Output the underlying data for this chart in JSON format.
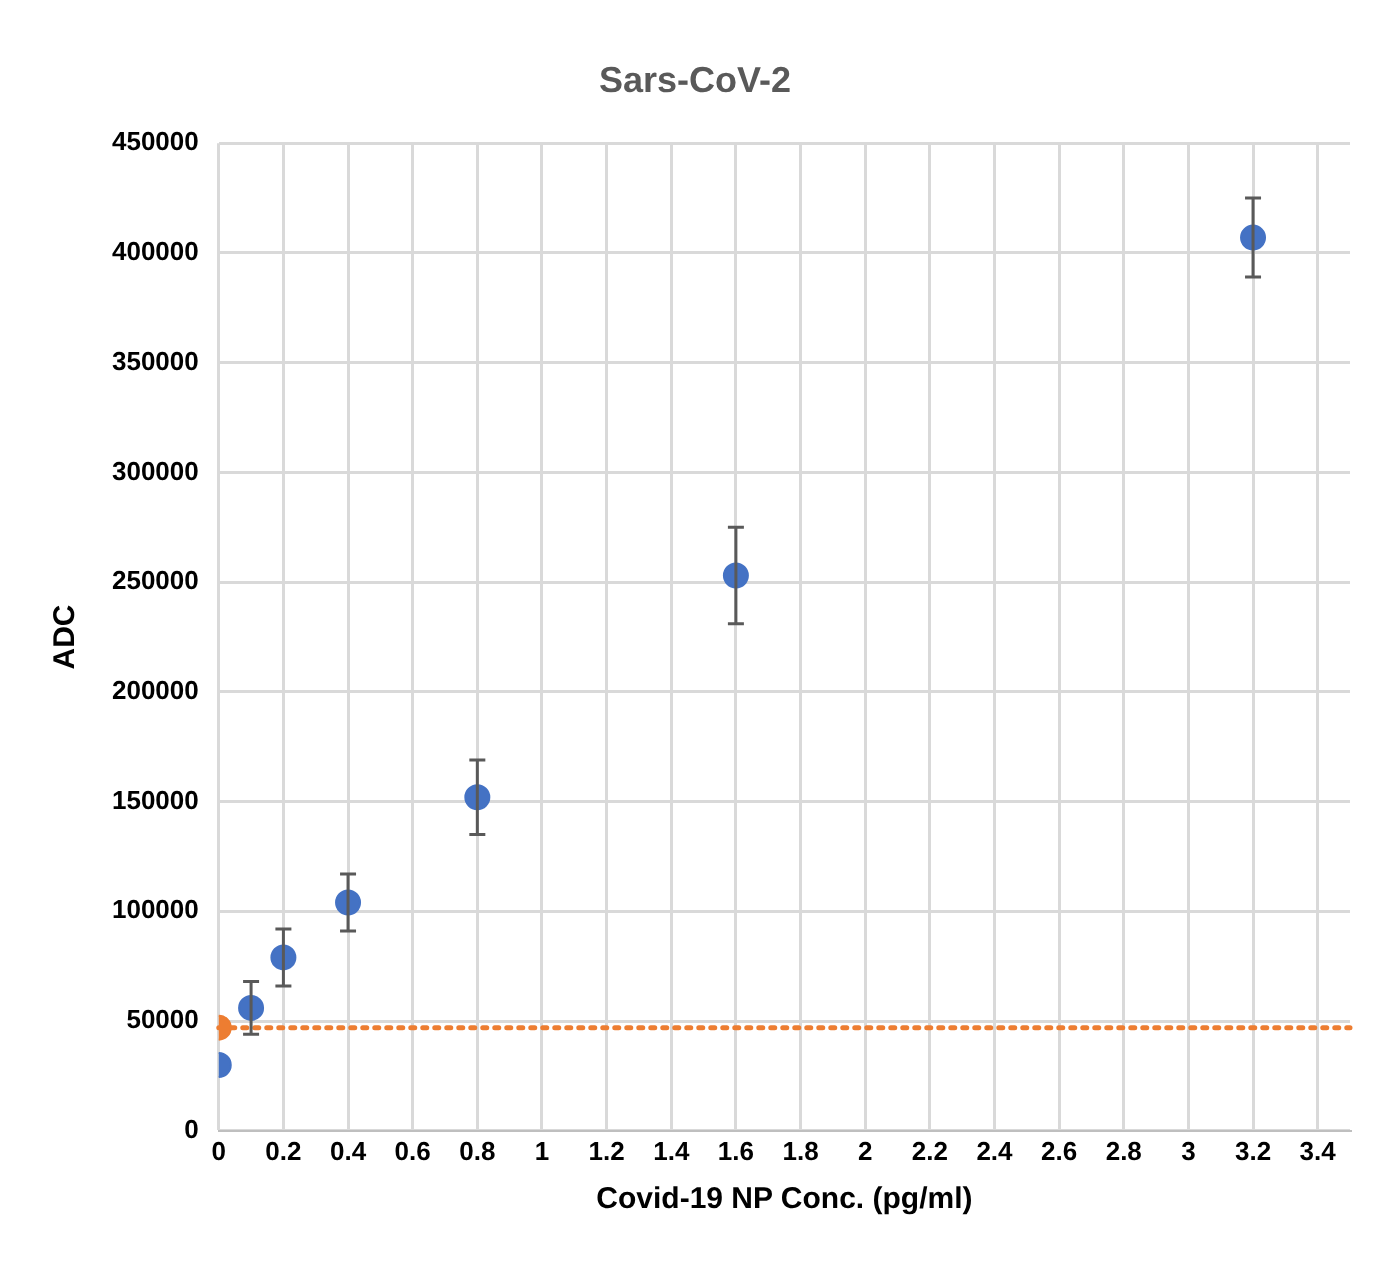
{
  "chart_data": {
    "type": "scatter",
    "title": "Sars-CoV-2",
    "xlabel": "Covid-19 NP Conc. (pg/ml)",
    "ylabel": "ADC",
    "series": [
      {
        "color": "#4472c4",
        "x": [
          0,
          0.1,
          0.2,
          0.4,
          0.8,
          1.6,
          3.2
        ],
        "values": [
          30000,
          56000,
          79000,
          104000,
          152000,
          253000,
          407000
        ],
        "errors": [
          null,
          12000,
          13000,
          13000,
          17000,
          22000,
          18000
        ]
      },
      {
        "color": "#ed7d31",
        "x": [
          0
        ],
        "values": [
          47000
        ]
      }
    ],
    "ref_lines": [
      {
        "axis": "y",
        "value": 47000,
        "color": "#ed7d31",
        "line_style": "dotted"
      }
    ],
    "xlim": [
      0,
      3.5
    ],
    "xticks": [
      0,
      0.2,
      0.4,
      0.6,
      0.8,
      1,
      1.2,
      1.4,
      1.6,
      1.8,
      2,
      2.2,
      2.4,
      2.6,
      2.8,
      3,
      3.2,
      3.4
    ],
    "ylim": [
      0,
      450000
    ],
    "yticks": [
      0,
      50000,
      100000,
      150000,
      200000,
      250000,
      300000,
      350000,
      400000,
      450000
    ],
    "grid": true,
    "legend": false,
    "marker": "circle"
  }
}
